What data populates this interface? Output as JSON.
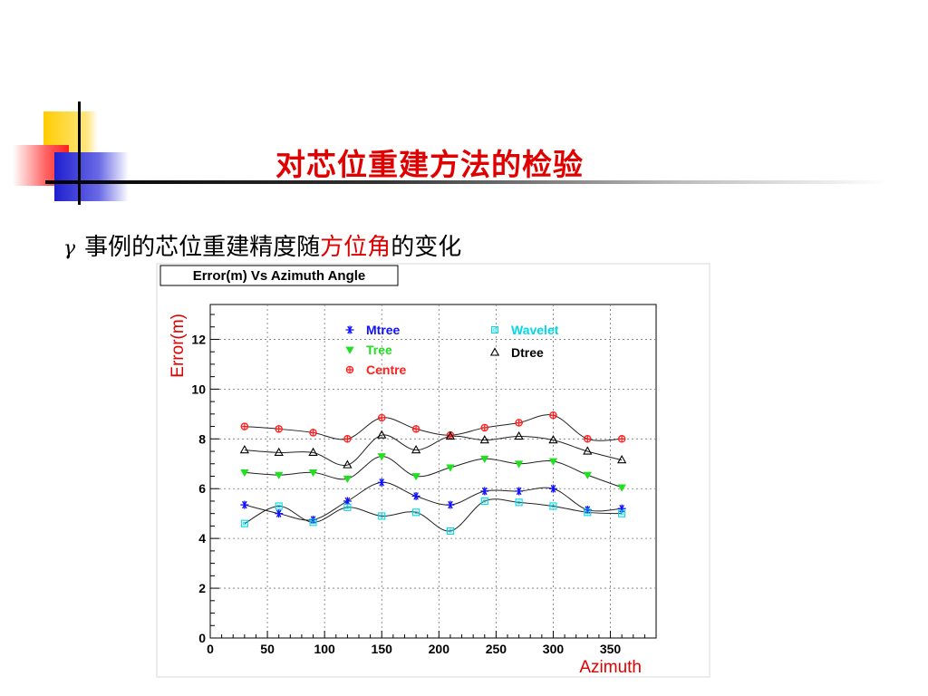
{
  "slide": {
    "title": "对芯位重建方法的检验",
    "bullet_symbol": "γ",
    "bullet_text_before": "事例的芯位重建精度随",
    "bullet_text_highlight": "方位角",
    "bullet_text_after": "的变化",
    "title_color": "#e00000"
  },
  "chart_data": {
    "type": "line",
    "title": "Error(m) Vs Azimuth Angle",
    "xlabel": "Azimuth",
    "ylabel": "Error(m)",
    "xlim": [
      0,
      390
    ],
    "ylim": [
      0,
      13.4
    ],
    "xticks": [
      0,
      50,
      100,
      150,
      200,
      250,
      300,
      350
    ],
    "yticks": [
      0,
      2,
      4,
      6,
      8,
      10,
      12
    ],
    "grid": true,
    "legend_placement": "top",
    "x": [
      30,
      60,
      90,
      120,
      150,
      180,
      210,
      240,
      270,
      300,
      330,
      360
    ],
    "series": [
      {
        "name": "Centre",
        "color": "#ff2020",
        "marker": "cross-circle",
        "values": [
          8.5,
          8.4,
          8.25,
          8.0,
          8.85,
          8.4,
          8.15,
          8.45,
          8.65,
          8.95,
          8.0,
          8.0
        ]
      },
      {
        "name": "Dtree",
        "color": "#000000",
        "marker": "triangle-open",
        "values": [
          7.55,
          7.45,
          7.45,
          6.95,
          8.15,
          7.55,
          8.1,
          7.95,
          8.1,
          7.95,
          7.5,
          7.15
        ]
      },
      {
        "name": "Tree",
        "color": "#20e020",
        "marker": "triangle-down",
        "values": [
          6.65,
          6.55,
          6.65,
          6.4,
          7.3,
          6.5,
          6.85,
          7.2,
          7.0,
          7.1,
          6.55,
          6.05
        ]
      },
      {
        "name": "Mtree",
        "color": "#1010ff",
        "marker": "star",
        "values": [
          5.35,
          5.0,
          4.75,
          5.5,
          6.25,
          5.7,
          5.35,
          5.9,
          5.9,
          6.0,
          5.15,
          5.2
        ]
      },
      {
        "name": "Wavelet",
        "color": "#00d8e8",
        "marker": "square-open",
        "values": [
          4.6,
          5.3,
          4.65,
          5.25,
          4.9,
          5.05,
          4.3,
          5.5,
          5.45,
          5.3,
          5.05,
          5.0
        ]
      }
    ]
  }
}
